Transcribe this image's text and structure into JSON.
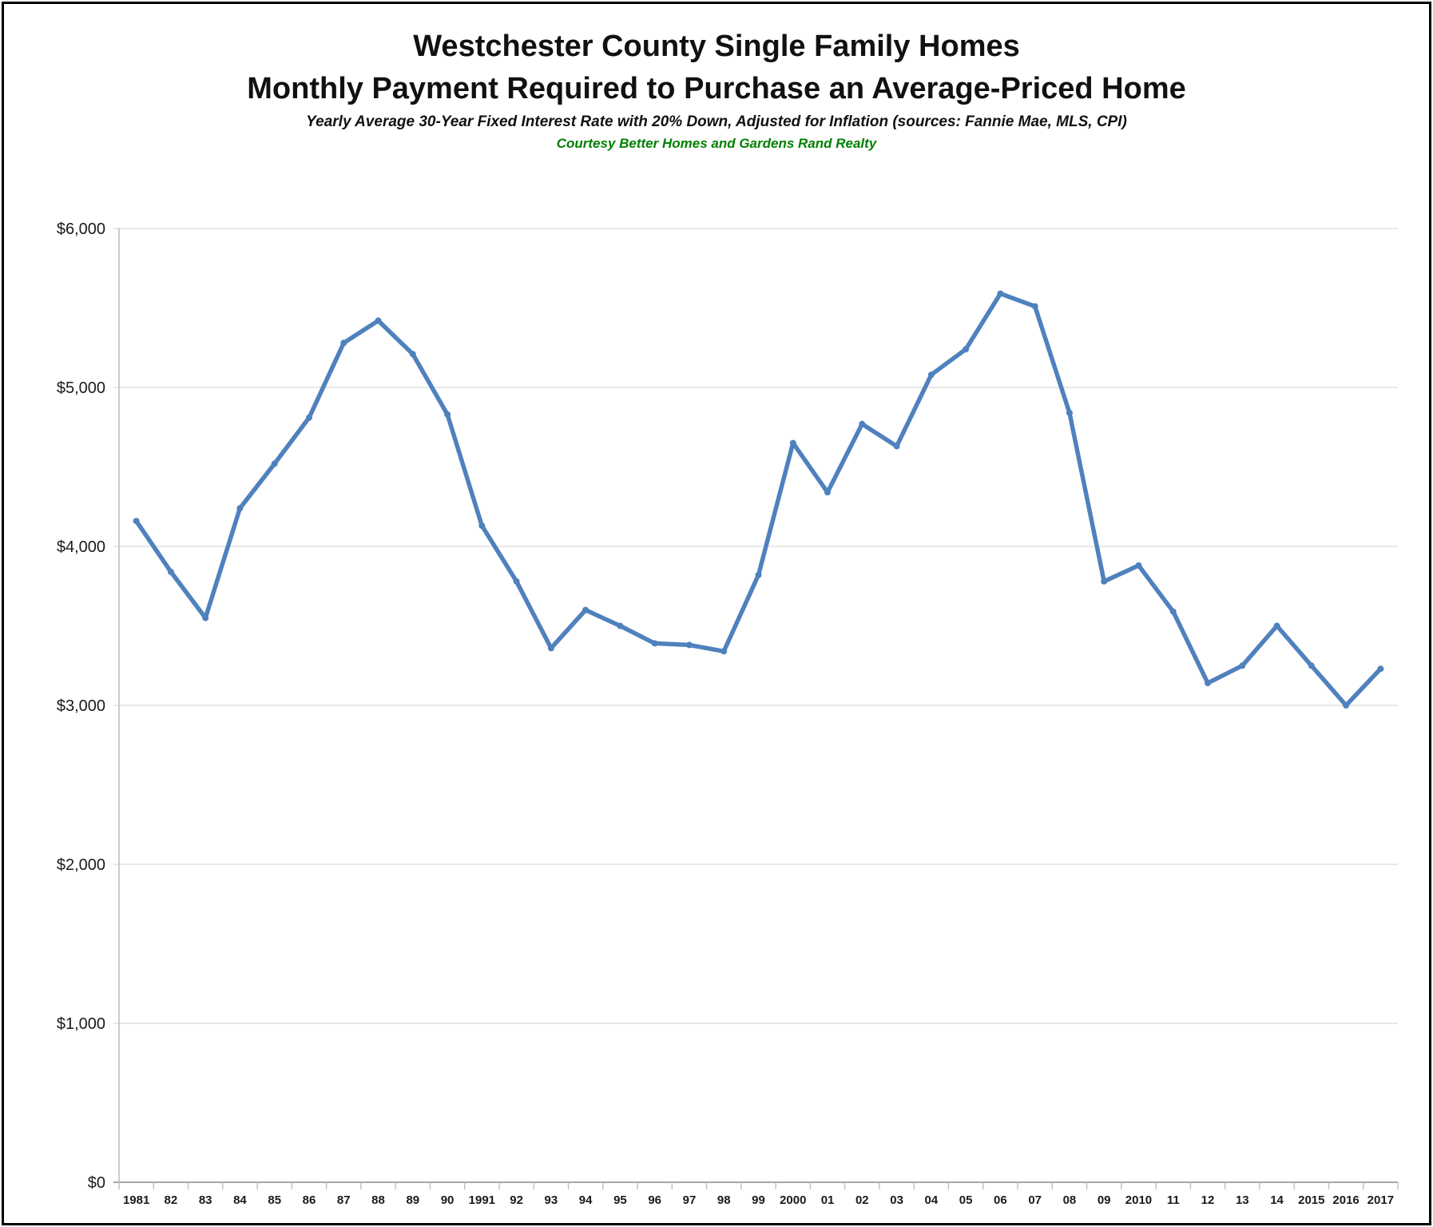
{
  "page": {
    "background_color": "#FFFFFF",
    "border_color": "#000000"
  },
  "header": {
    "title_line1": "Westchester County Single Family Homes",
    "title_line2": "Monthly Payment Required to Purchase an Average-Priced Home",
    "subtitle": "Yearly Average 30-Year Fixed Interest Rate with 20% Down, Adjusted for Inflation (sources: Fannie Mae, MLS, CPI)",
    "credit": "Courtesy Better Homes and Gardens Rand Realty",
    "credit_color": "#008000"
  },
  "chart_data": {
    "type": "line",
    "title": "Westchester County Single Family Homes — Monthly Payment Required to Purchase an Average-Priced Home",
    "subtitle": "Yearly Average 30-Year Fixed Interest Rate with 20% Down, Adjusted for Inflation (sources: Fannie Mae, MLS, CPI)",
    "annotation": "Courtesy Better Homes and Gardens Rand Realty",
    "categories": [
      "1981",
      "82",
      "83",
      "84",
      "85",
      "86",
      "87",
      "88",
      "89",
      "90",
      "1991",
      "92",
      "93",
      "94",
      "95",
      "96",
      "97",
      "98",
      "99",
      "2000",
      "01",
      "02",
      "03",
      "04",
      "05",
      "06",
      "07",
      "08",
      "09",
      "2010",
      "11",
      "12",
      "13",
      "14",
      "2015",
      "2016",
      "2017"
    ],
    "values": [
      4160,
      3840,
      3550,
      4240,
      4520,
      4810,
      5280,
      5420,
      5210,
      4830,
      4130,
      3780,
      3360,
      3600,
      3500,
      3390,
      3380,
      3340,
      3820,
      4650,
      4340,
      4770,
      4630,
      5080,
      5240,
      5590,
      5510,
      4840,
      3780,
      3880,
      3590,
      3140,
      3250,
      3500,
      3250,
      3000,
      3230
    ],
    "xlabel": "",
    "ylabel": "",
    "ylim": [
      0,
      6000
    ],
    "ytick_step": 1000,
    "ytick_labels": [
      "$0",
      "$1,000",
      "$2,000",
      "$3,000",
      "$4,000",
      "$5,000",
      "$6,000"
    ],
    "grid": true,
    "legend": "none",
    "marker": "circle",
    "line_color": "#4F81BD",
    "gridline_color": "#D9D9D9",
    "axis_line_color": "#A6A6A6",
    "tick_color": "#BFBFBF",
    "label_color": "#1A1A1A"
  }
}
